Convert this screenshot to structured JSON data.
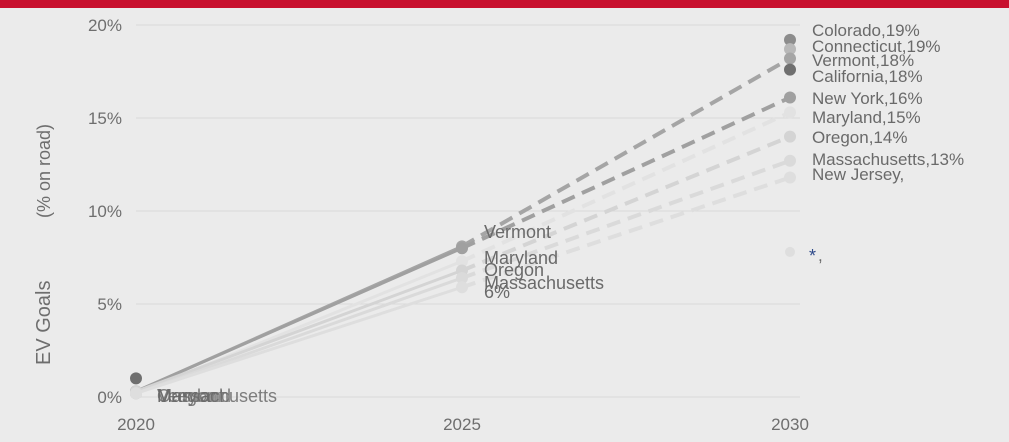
{
  "colors": {
    "top_bar": "#c8102e",
    "background": "#ebebeb",
    "grid": "#d9d9d9",
    "axis_text": "#6e6e6e",
    "label_text": "#6a6a6a",
    "star": "#2e4a8a"
  },
  "chart_data": {
    "type": "line",
    "ylabel": "EV Goals",
    "ylabel_unit": "(% on road)",
    "x_ticks": [
      "2020",
      "2025",
      "2030"
    ],
    "y_ticks": [
      "0%",
      "5%",
      "10%",
      "15%",
      "20%"
    ],
    "ylim": [
      0,
      20
    ],
    "xlim": [
      2020,
      2030
    ],
    "grid": true,
    "series": [
      {
        "name": "Colorado",
        "color": "#8c8c8c",
        "y2020": 0.2,
        "y2025": null,
        "y2030": 19.2,
        "end_label": "Colorado,19%"
      },
      {
        "name": "Connecticut",
        "color": "#b8b8b8",
        "y2020": 0.2,
        "y2025": null,
        "y2030": 18.7,
        "end_label": "Connecticut,19%"
      },
      {
        "name": "Vermont",
        "color": "#a5a5a5",
        "y2020": 0.3,
        "y2025": 8.1,
        "y2030": 18.2,
        "mid_label": "Vermont",
        "end_label": "Vermont,18%"
      },
      {
        "name": "California",
        "color": "#6f6f6f",
        "y2020": 1.0,
        "y2025": null,
        "y2030": 17.6,
        "end_label": "California,18%"
      },
      {
        "name": "New York",
        "color": "#a0a0a0",
        "y2020": 0.3,
        "y2025": 8.0,
        "y2030": 16.1,
        "end_label": "New York,16%"
      },
      {
        "name": "Maryland",
        "color": "#e2e2e2",
        "y2020": 0.2,
        "y2025": 7.3,
        "y2030": 15.3,
        "mid_label": "Maryland",
        "end_label": "Maryland,15%"
      },
      {
        "name": "Oregon",
        "color": "#d4d4d4",
        "y2020": 0.3,
        "y2025": 6.8,
        "y2030": 14.0,
        "mid_label": "Oregon",
        "end_label": "Oregon,14%"
      },
      {
        "name": "Massachusetts",
        "color": "#dadada",
        "y2020": 0.2,
        "y2025": 6.4,
        "y2030": 12.7,
        "mid_label": "Massachusetts",
        "end_label": "Massachusetts,13%"
      },
      {
        "name": "New Jersey",
        "color": "#dedede",
        "y2020": 0.2,
        "y2025": 5.9,
        "y2030": 11.8,
        "mid_label": "6%",
        "end_label": "New Jersey,"
      }
    ],
    "star_point": {
      "y2030": 7.8,
      "mark": "*",
      "label": ","
    },
    "start_labels": [
      "Oregon",
      "Maryland",
      "Vermont",
      "Massachusetts"
    ]
  }
}
